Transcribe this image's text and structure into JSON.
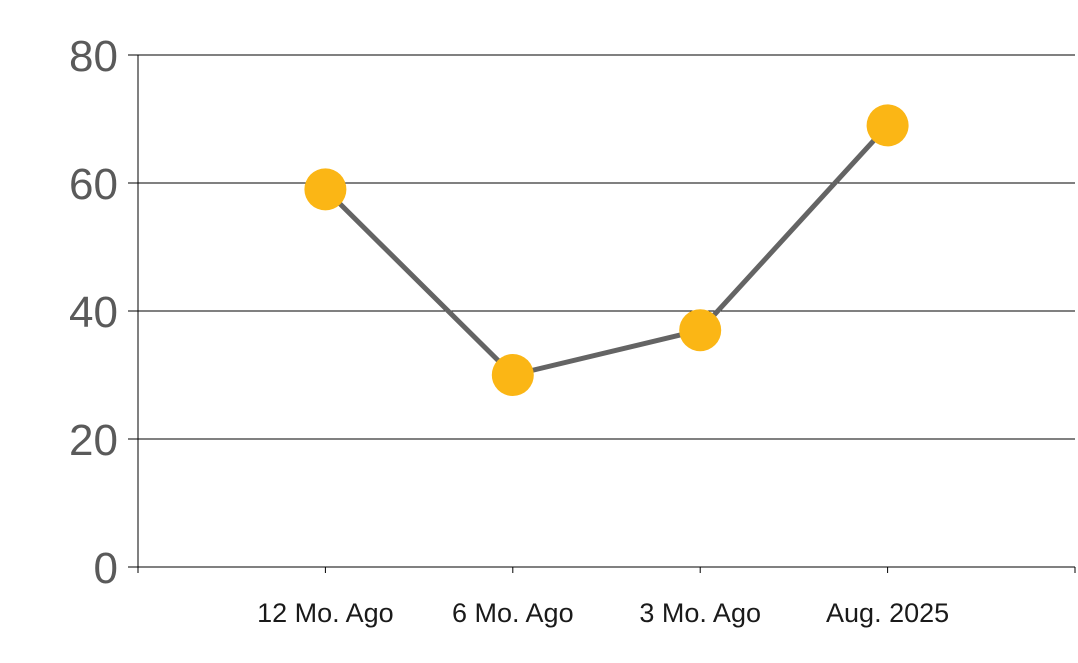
{
  "chart_data": {
    "type": "line",
    "title": "",
    "xlabel": "",
    "ylabel": "",
    "categories": [
      "12 Mo. Ago",
      "6 Mo. Ago",
      "3 Mo. Ago",
      "Aug. 2025"
    ],
    "series": [
      {
        "values": [
          59,
          30,
          37,
          69
        ]
      }
    ],
    "ylim": [
      0,
      80
    ],
    "yticks": [
      "0",
      "20",
      "40",
      "60",
      "80"
    ],
    "grid": true,
    "legend": "none"
  },
  "colors": {
    "line": "#646464",
    "marker": "#FBB615",
    "grid": "#000000",
    "y_tick_text": "#5a5a5a",
    "x_tick_text": "#1a1a1a"
  }
}
